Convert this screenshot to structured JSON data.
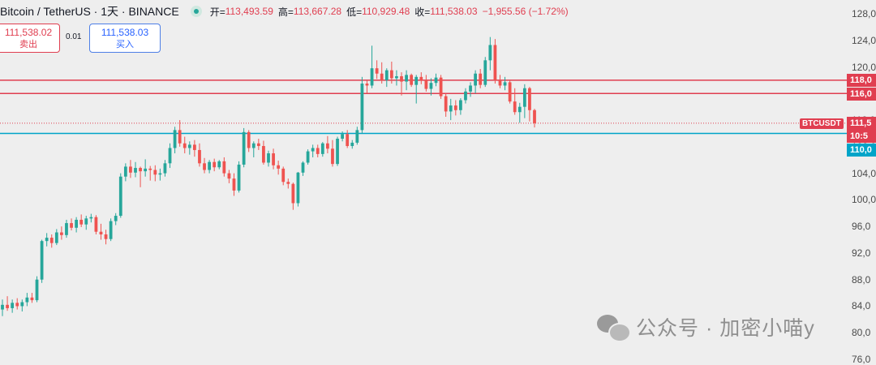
{
  "legend": {
    "symbol": "Bitcoin / TetherUS · 1天 · BINANCE",
    "open_label": "开=",
    "open": "113,493.59",
    "high_label": "高=",
    "high": "113,667.28",
    "low_label": "低=",
    "low": "110,929.48",
    "close_label": "收=",
    "close": "111,538.03",
    "change": "−1,955.56 (−1.72%)"
  },
  "trade": {
    "sell_price": "111,538.02",
    "sell_label": "卖出",
    "spread": "0.01",
    "buy_price": "111,538.03",
    "buy_label": "买入"
  },
  "price_tags": {
    "symbol": "BTCUSDT",
    "last_price": "111,5",
    "countdown": "10:5",
    "resistance_1": "118,0",
    "resistance_2": "116,0",
    "support": "110,0"
  },
  "watermark": "公众号 · 加密小喵y",
  "colors": {
    "up": "#26a69a",
    "down": "#ef5350",
    "resistance": "#e03e50",
    "support": "#00a4c8",
    "last_price": "#e03e50"
  },
  "chart_data": {
    "type": "candlestick",
    "title": "Bitcoin / TetherUS · 1天 · BINANCE",
    "ylim": [
      76000,
      128000
    ],
    "yticks": [
      "128,0",
      "124,0",
      "120,0",
      "116,0",
      "112,0",
      "108,0",
      "104,0",
      "100,0",
      "96,0",
      "92,0",
      "88,0",
      "84,0",
      "80,0",
      "76,0"
    ],
    "ytick_values": [
      128000,
      124000,
      120000,
      116000,
      112000,
      108000,
      104000,
      100000,
      96000,
      92000,
      88000,
      84000,
      80000,
      76000
    ],
    "horizontal_levels": [
      {
        "name": "resistance_1",
        "value": 118000,
        "color": "#e03e50"
      },
      {
        "name": "resistance_2",
        "value": 116000,
        "color": "#e03e50"
      },
      {
        "name": "support",
        "value": 110000,
        "color": "#00a4c8"
      },
      {
        "name": "last_price",
        "value": 111538,
        "color": "#e03e50",
        "dotted": true
      }
    ],
    "candles": [
      [
        83500,
        85000,
        82500,
        84200
      ],
      [
        84200,
        85500,
        83300,
        83700
      ],
      [
        83700,
        85000,
        83000,
        84500
      ],
      [
        84500,
        85200,
        83500,
        84000
      ],
      [
        84000,
        85000,
        83200,
        84600
      ],
      [
        84600,
        86000,
        84000,
        85300
      ],
      [
        85300,
        86000,
        84500,
        84900
      ],
      [
        84900,
        88500,
        84600,
        88000
      ],
      [
        88000,
        94000,
        87500,
        93800
      ],
      [
        93800,
        95000,
        93000,
        94300
      ],
      [
        94300,
        94800,
        92800,
        93500
      ],
      [
        93500,
        95600,
        93200,
        95100
      ],
      [
        95100,
        96000,
        94000,
        94700
      ],
      [
        94700,
        97000,
        94300,
        96500
      ],
      [
        96500,
        97200,
        95400,
        95800
      ],
      [
        95800,
        97400,
        95100,
        97000
      ],
      [
        97000,
        97800,
        95900,
        96300
      ],
      [
        96300,
        97600,
        95500,
        97200
      ],
      [
        97200,
        97900,
        96600,
        97400
      ],
      [
        97400,
        97700,
        94800,
        95200
      ],
      [
        95200,
        96400,
        94000,
        94800
      ],
      [
        94800,
        95500,
        93300,
        94100
      ],
      [
        94100,
        97200,
        93800,
        96800
      ],
      [
        96800,
        98000,
        96200,
        97600
      ],
      [
        97600,
        104000,
        97300,
        103500
      ],
      [
        103500,
        105500,
        102800,
        105000
      ],
      [
        105000,
        106000,
        103300,
        104100
      ],
      [
        104100,
        105700,
        103400,
        104800
      ],
      [
        104800,
        105000,
        101900,
        104300
      ],
      [
        104300,
        106100,
        103500,
        104700
      ],
      [
        104700,
        105100,
        102900,
        104500
      ],
      [
        104500,
        105200,
        102800,
        103800
      ],
      [
        103800,
        104700,
        102900,
        104000
      ],
      [
        104000,
        106000,
        103500,
        105500
      ],
      [
        105500,
        108500,
        104800,
        107800
      ],
      [
        107800,
        111000,
        107000,
        110500
      ],
      [
        110500,
        112000,
        108000,
        108500
      ],
      [
        108500,
        109500,
        107000,
        107800
      ],
      [
        107800,
        108800,
        106800,
        108300
      ],
      [
        108300,
        109000,
        106500,
        107500
      ],
      [
        107500,
        108500,
        105000,
        105500
      ],
      [
        105500,
        106300,
        104000,
        104500
      ],
      [
        104500,
        106000,
        104000,
        105700
      ],
      [
        105700,
        106200,
        104300,
        104900
      ],
      [
        104900,
        106000,
        104600,
        105800
      ],
      [
        105800,
        106400,
        103500,
        104000
      ],
      [
        104000,
        104500,
        102500,
        103200
      ],
      [
        103200,
        104000,
        100600,
        101400
      ],
      [
        101400,
        105800,
        101100,
        105300
      ],
      [
        105300,
        110800,
        104900,
        110200
      ],
      [
        110200,
        110500,
        107200,
        107800
      ],
      [
        107800,
        108800,
        106400,
        108500
      ],
      [
        108500,
        109200,
        107500,
        108100
      ],
      [
        108100,
        108900,
        105300,
        105600
      ],
      [
        105600,
        107400,
        105000,
        107000
      ],
      [
        107000,
        107700,
        104600,
        105200
      ],
      [
        105200,
        105900,
        103800,
        104700
      ],
      [
        104700,
        105000,
        102200,
        102700
      ],
      [
        102700,
        103200,
        101700,
        102400
      ],
      [
        102400,
        102600,
        98500,
        99500
      ],
      [
        99500,
        104200,
        99000,
        104100
      ],
      [
        104100,
        105800,
        103600,
        105600
      ],
      [
        105600,
        107600,
        105300,
        107300
      ],
      [
        107300,
        108300,
        106400,
        107800
      ],
      [
        107800,
        108300,
        106400,
        106900
      ],
      [
        106900,
        108700,
        106500,
        108500
      ],
      [
        108500,
        109600,
        107000,
        107700
      ],
      [
        107700,
        109000,
        105000,
        105400
      ],
      [
        105400,
        109500,
        105100,
        109200
      ],
      [
        109200,
        110300,
        108800,
        109900
      ],
      [
        109900,
        110500,
        107800,
        108100
      ],
      [
        108100,
        109000,
        107700,
        108600
      ],
      [
        108600,
        111000,
        108300,
        110500
      ],
      [
        110500,
        118500,
        110000,
        117500
      ],
      [
        117500,
        118000,
        116000,
        117200
      ],
      [
        117200,
        123200,
        116800,
        119800
      ],
      [
        119800,
        121000,
        118200,
        119000
      ],
      [
        119000,
        120700,
        117500,
        118000
      ],
      [
        118000,
        119800,
        117000,
        119500
      ],
      [
        119500,
        120800,
        117500,
        118300
      ],
      [
        118300,
        119500,
        117200,
        118600
      ],
      [
        118600,
        119200,
        115700,
        117800
      ],
      [
        117800,
        119500,
        116500,
        118800
      ],
      [
        118800,
        119000,
        117000,
        117300
      ],
      [
        117300,
        118800,
        114500,
        118500
      ],
      [
        118500,
        119200,
        117400,
        118000
      ],
      [
        118000,
        118800,
        116300,
        116700
      ],
      [
        116700,
        118300,
        115700,
        117600
      ],
      [
        117600,
        119000,
        117100,
        118400
      ],
      [
        118400,
        118800,
        115200,
        115600
      ],
      [
        115600,
        116000,
        112500,
        113300
      ],
      [
        113300,
        115200,
        112000,
        114200
      ],
      [
        114200,
        115000,
        112700,
        113500
      ],
      [
        113500,
        115300,
        112800,
        115000
      ],
      [
        115000,
        116800,
        114500,
        116300
      ],
      [
        116300,
        117700,
        115500,
        117200
      ],
      [
        117200,
        119500,
        116000,
        119000
      ],
      [
        119000,
        119700,
        116800,
        117300
      ],
      [
        117300,
        121500,
        117000,
        121000
      ],
      [
        121000,
        124500,
        119500,
        123300
      ],
      [
        123300,
        124200,
        117500,
        118000
      ],
      [
        118000,
        118800,
        116800,
        117200
      ],
      [
        117200,
        118500,
        116500,
        117700
      ],
      [
        117700,
        118000,
        114500,
        114800
      ],
      [
        114800,
        116800,
        112800,
        113200
      ],
      [
        113200,
        114600,
        111600,
        114000
      ],
      [
        114000,
        117400,
        112300,
        116800
      ],
      [
        116800,
        117000,
        111800,
        113500
      ],
      [
        113500,
        113700,
        110900,
        111538
      ]
    ]
  }
}
